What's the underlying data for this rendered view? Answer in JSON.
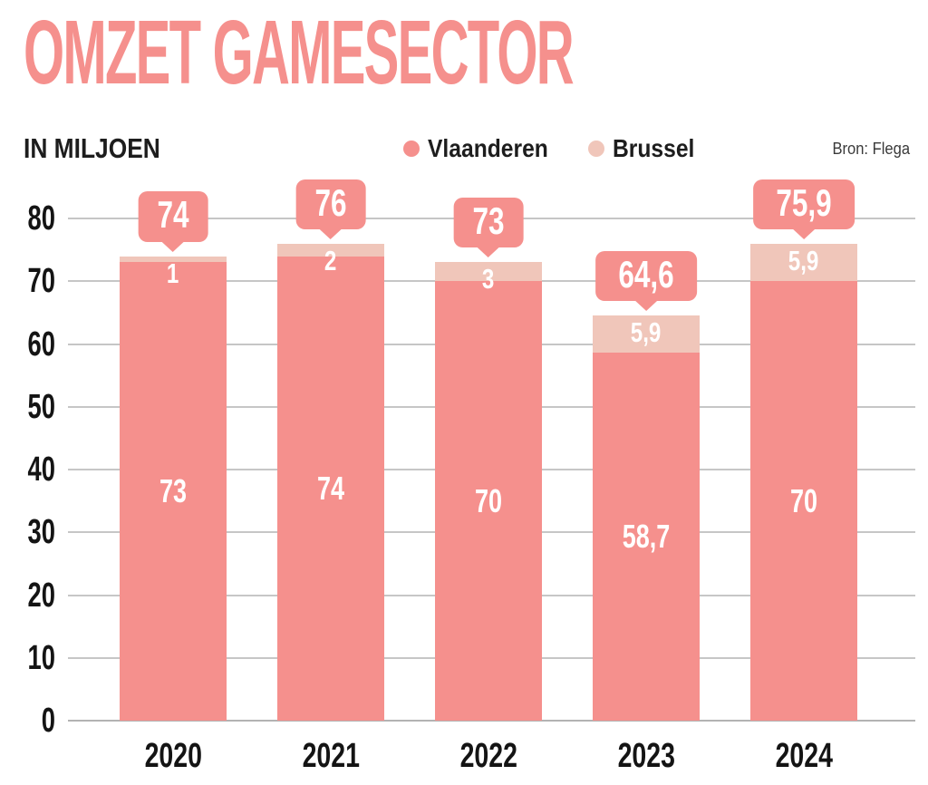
{
  "colors": {
    "accent": "#f5908d",
    "brussel": "#f0c6ba",
    "ink": "#1d1d1d",
    "grid": "#c6c6c6"
  },
  "chart_data": {
    "type": "bar",
    "stacked": true,
    "title": "OMZET GAMESECTOR",
    "subtitle": "IN MILJOEN",
    "source": "Bron: Flega",
    "categories": [
      "2020",
      "2021",
      "2022",
      "2023",
      "2024"
    ],
    "series": [
      {
        "name": "Vlaanderen",
        "color": "#f5908d",
        "values": [
          73,
          74,
          70,
          58.7,
          70
        ],
        "value_labels": [
          "73",
          "74",
          "70",
          "58,7",
          "70"
        ]
      },
      {
        "name": "Brussel",
        "color": "#f0c6ba",
        "values": [
          1,
          2,
          3,
          5.9,
          5.9
        ],
        "value_labels": [
          "1",
          "2",
          "3",
          "5,9",
          "5,9"
        ]
      }
    ],
    "totals": [
      74,
      76,
      73,
      64.6,
      75.9
    ],
    "total_labels": [
      "74",
      "76",
      "73",
      "64,6",
      "75,9"
    ],
    "ylim": [
      0,
      80
    ],
    "yticks": [
      0,
      10,
      20,
      30,
      40,
      50,
      60,
      70,
      80
    ],
    "grid": true,
    "legend_position": "top-center"
  }
}
